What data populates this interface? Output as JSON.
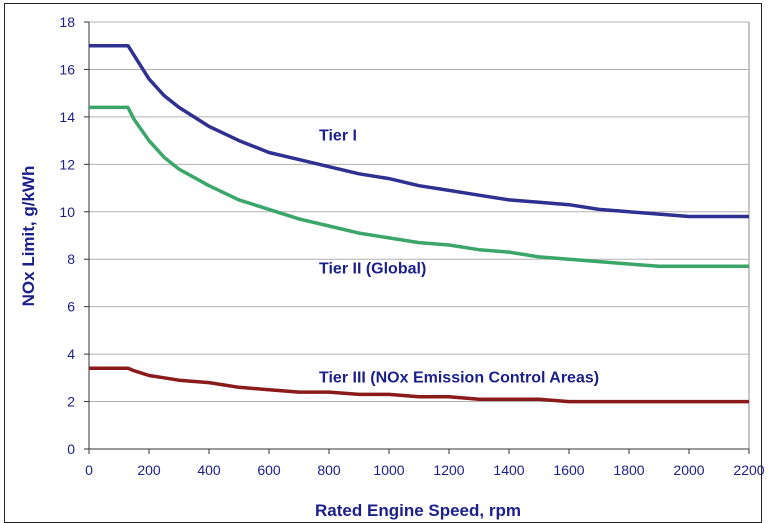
{
  "chart_data": {
    "type": "line",
    "title": "",
    "xlabel": "Rated Engine Speed, rpm",
    "ylabel": "NOx Limit, g/kWh",
    "xlim": [
      0,
      2200
    ],
    "ylim": [
      0,
      18
    ],
    "xticks": [
      0,
      200,
      400,
      600,
      800,
      1000,
      1200,
      1400,
      1600,
      1800,
      2000,
      2200
    ],
    "yticks": [
      0,
      2,
      4,
      6,
      8,
      10,
      12,
      14,
      16,
      18
    ],
    "grid": "horizontal",
    "legend": "none",
    "series": [
      {
        "name": "Tier I",
        "color": "#2e3192",
        "x": [
          0,
          130,
          150,
          200,
          250,
          300,
          400,
          500,
          600,
          700,
          800,
          900,
          1000,
          1100,
          1200,
          1300,
          1400,
          1500,
          1600,
          1700,
          1800,
          1900,
          2000,
          2200
        ],
        "y": [
          17.0,
          17.0,
          16.6,
          15.6,
          14.9,
          14.4,
          13.6,
          13.0,
          12.5,
          12.2,
          11.9,
          11.6,
          11.4,
          11.1,
          10.9,
          10.7,
          10.5,
          10.4,
          10.3,
          10.1,
          10.0,
          9.9,
          9.8,
          9.8
        ]
      },
      {
        "name": "Tier II (Global)",
        "color": "#3aa66a",
        "x": [
          0,
          130,
          150,
          200,
          250,
          300,
          400,
          500,
          600,
          700,
          800,
          900,
          1000,
          1100,
          1200,
          1300,
          1400,
          1500,
          1600,
          1700,
          1800,
          1900,
          2000,
          2200
        ],
        "y": [
          14.4,
          14.4,
          13.9,
          13.0,
          12.3,
          11.8,
          11.1,
          10.5,
          10.1,
          9.7,
          9.4,
          9.1,
          8.9,
          8.7,
          8.6,
          8.4,
          8.3,
          8.1,
          8.0,
          7.9,
          7.8,
          7.7,
          7.7,
          7.7
        ]
      },
      {
        "name": "Tier III (NOx Emission Control Areas)",
        "color": "#8b1a1a",
        "x": [
          0,
          130,
          150,
          200,
          250,
          300,
          400,
          500,
          600,
          700,
          800,
          900,
          1000,
          1100,
          1200,
          1300,
          1400,
          1500,
          1600,
          1700,
          1800,
          1900,
          2000,
          2200
        ],
        "y": [
          3.4,
          3.4,
          3.3,
          3.1,
          3.0,
          2.9,
          2.8,
          2.6,
          2.5,
          2.4,
          2.4,
          2.3,
          2.3,
          2.2,
          2.2,
          2.1,
          2.1,
          2.1,
          2.0,
          2.0,
          2.0,
          2.0,
          2.0,
          2.0
        ]
      }
    ]
  }
}
